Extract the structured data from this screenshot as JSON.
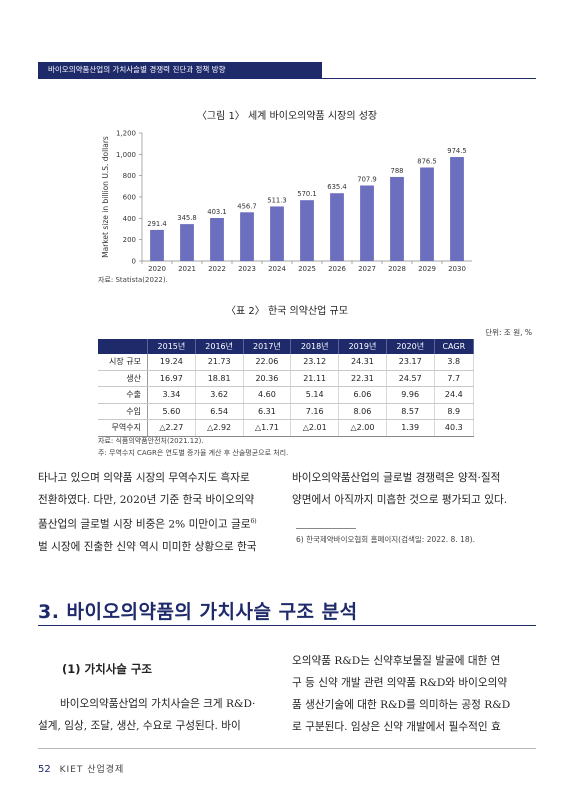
{
  "header": {
    "running_title": "바이오의약품산업의 가치사슬별 경쟁력 진단과 정책 방향"
  },
  "figure": {
    "label": "〈그림 1〉 세계 바이오의약품 시장의 성장",
    "source": "자료: Statista(2022)."
  },
  "chart_data": {
    "type": "bar",
    "title": "〈그림 1〉 세계 바이오의약품 시장의 성장",
    "ylabel": "Market size in billion U.S. dollars",
    "xlabel": "",
    "categories": [
      "2020",
      "2021",
      "2022",
      "2023",
      "2024",
      "2025",
      "2026",
      "2027",
      "2028",
      "2029",
      "2030"
    ],
    "values": [
      291.4,
      345.8,
      403.1,
      456.7,
      511.3,
      570.1,
      635.4,
      707.9,
      788,
      876.5,
      974.5
    ],
    "value_labels": [
      "291.4",
      "345.8",
      "403.1",
      "456.7",
      "511.3",
      "570.1",
      "635.4",
      "707.9",
      "788",
      "876.5",
      "974.5"
    ],
    "ylim": [
      0,
      1200
    ],
    "yticks": [
      "0",
      "200",
      "400",
      "600",
      "800",
      "1,000",
      "1,200"
    ],
    "bar_color": "#6b6fbd",
    "grid": false
  },
  "table": {
    "label": "〈표 2〉 한국 의약산업 규모",
    "unit": "단위: 조 원, %",
    "columns": [
      "2015년",
      "2016년",
      "2017년",
      "2018년",
      "2019년",
      "2020년",
      "CAGR"
    ],
    "rows": [
      {
        "name": "시장 규모",
        "values": [
          "19.24",
          "21.73",
          "22.06",
          "23.12",
          "24.31",
          "23.17",
          "3.8"
        ]
      },
      {
        "name": "생산",
        "values": [
          "16.97",
          "18.81",
          "20.36",
          "21.11",
          "22.31",
          "24.57",
          "7.7"
        ]
      },
      {
        "name": "수출",
        "values": [
          "3.34",
          "3.62",
          "4.60",
          "5.14",
          "6.06",
          "9.96",
          "24.4"
        ]
      },
      {
        "name": "수입",
        "values": [
          "5.60",
          "6.54",
          "6.31",
          "7.16",
          "8.06",
          "8.57",
          "8.9"
        ]
      },
      {
        "name": "무역수지",
        "values": [
          "△2.27",
          "△2.92",
          "△1.71",
          "△2.01",
          "△2.00",
          "1.39",
          "40.3"
        ]
      }
    ],
    "source": "자료: 식품의약품안전처(2021.12).",
    "note": "주: 무역수지 CAGR은 연도별 증가율 계산 후 산술평균으로 처리."
  },
  "body": {
    "left_col_lines": [
      "타나고 있으며 의약품 시장의 무역수지도 흑자로",
      "전환하였다. 다만, 2020년 기준 한국 바이오의약",
      "품산업의 글로벌 시장 비중은 2% 미만이고 글로",
      "벌 시장에 진출한 신약 역시 미미한 상황으로 한국"
    ],
    "footnote_marker": "6)",
    "right_col_lines": [
      "바이오의약품산업의 글로벌 경쟁력은 양적·질적",
      "양면에서 아직까지 미흡한 것으로 평가되고 있다."
    ],
    "footnote": "6) 한국제약바이오협회 홈페이지(검색일: 2022. 8. 18)."
  },
  "section": {
    "title": "3. 바이오의약품의 가치사슬 구조 분석",
    "subtitle": "(1) 가치사슬 구조",
    "left_lines": [
      "바이오의약품산업의 가치사슬은 크게 R&D·",
      "설계, 임상, 조달, 생산, 수요로 구성된다. 바이"
    ],
    "right_lines": [
      "오의약품 R&D는 신약후보물질 발굴에 대한 연",
      "구 등 신약 개발 관련 의약품 R&D와 바이오의약",
      "품 생산기술에 대한 R&D를 의미하는 공정 R&D",
      "로 구분된다. 임상은 신약 개발에서 필수적인 효"
    ]
  },
  "footer": {
    "page_number": "52",
    "journal": "KIET 산업경제"
  }
}
